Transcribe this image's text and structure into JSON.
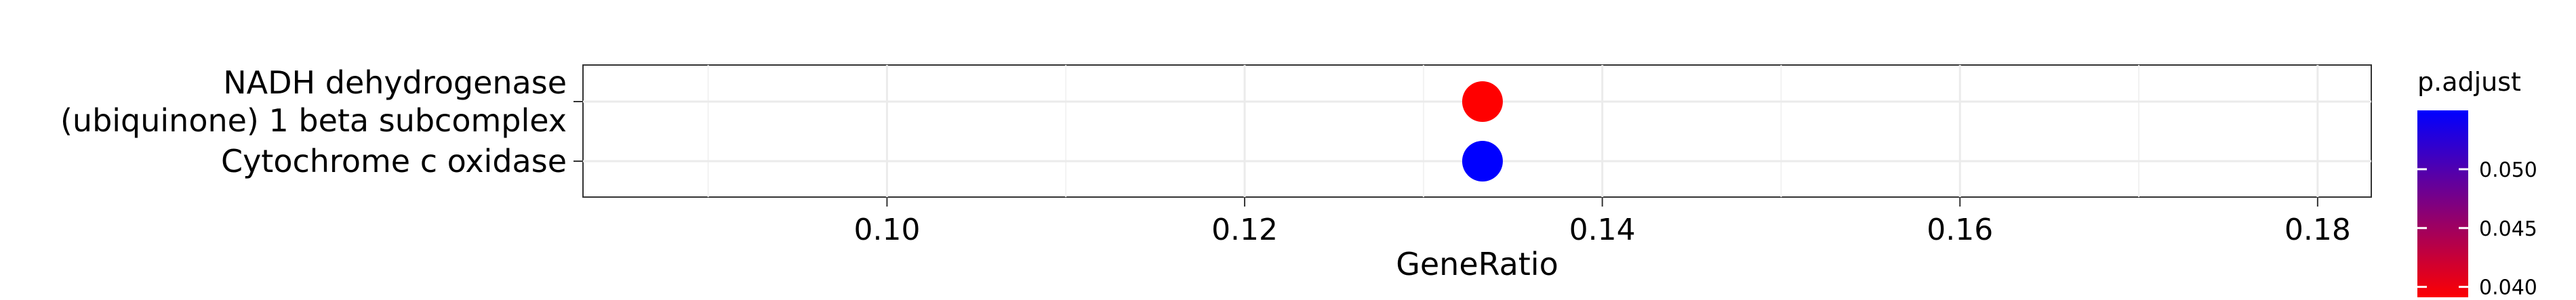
{
  "chart_data": {
    "type": "scatter",
    "title": "",
    "xlabel": "GeneRatio",
    "ylabel": "",
    "xlim": [
      0.083,
      0.183
    ],
    "x_ticks": [
      0.1,
      0.12,
      0.14,
      0.16,
      0.18
    ],
    "x_tick_labels": [
      "0.10",
      "0.12",
      "0.14",
      "0.16",
      "0.18"
    ],
    "categories": [
      "NADH dehydrogenase\n(ubiquinone) 1 beta subcomplex",
      "Cytochrome c oxidase"
    ],
    "category_label_lines": [
      [
        "NADH dehydrogenase",
        "(ubiquinone) 1 beta subcomplex"
      ],
      [
        "Cytochrome c oxidase"
      ]
    ],
    "points": [
      {
        "category": "NADH dehydrogenase\n(ubiquinone) 1 beta subcomplex",
        "x": 0.1333,
        "p_adjust": 0.039,
        "color": "#FF0000"
      },
      {
        "category": "Cytochrome c oxidase",
        "x": 0.1333,
        "p_adjust": 0.055,
        "color": "#0000FF"
      }
    ],
    "grid": true,
    "legend": {
      "title": "p.adjust",
      "placement": "right",
      "type": "colorbar",
      "range": [
        0.039,
        0.055
      ],
      "ticks": [
        0.04,
        0.045,
        0.05
      ],
      "tick_labels": [
        "0.040",
        "0.045",
        "0.050"
      ],
      "low_color": "#FF0000",
      "high_color": "#0000FF"
    }
  }
}
